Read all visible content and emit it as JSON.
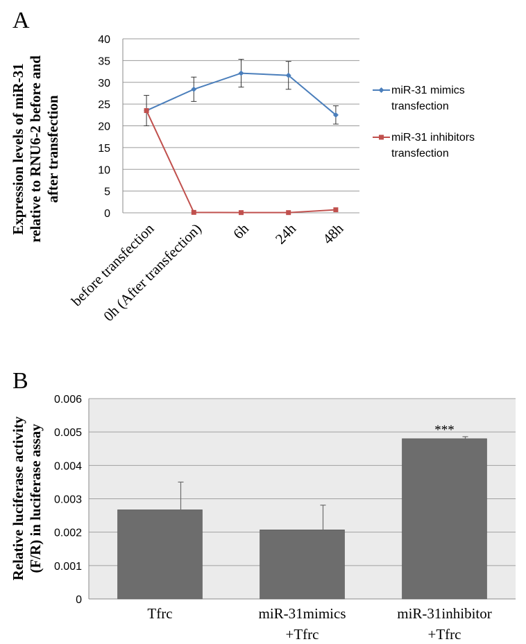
{
  "chart_data": [
    {
      "panel_label": "A",
      "type": "line",
      "categories": [
        "before transfection",
        "0h (After transfection)",
        "6h",
        "24h",
        "48h"
      ],
      "ylabel_lines": [
        "Expression levels of miR-31",
        "relative to RNU6-2 before and",
        "after transfection"
      ],
      "ylim": [
        0,
        40
      ],
      "yticks": [
        "0",
        "5",
        "10",
        "15",
        "20",
        "25",
        "30",
        "35",
        "40"
      ],
      "grid": true,
      "legend_position": "right",
      "series": [
        {
          "name_lines": [
            "miR-31 mimics",
            "transfection"
          ],
          "color": "#4a7ebb",
          "marker": "diamond",
          "values": [
            23.5,
            28.4,
            32.1,
            31.6,
            22.5
          ],
          "errors": [
            3.5,
            2.8,
            3.2,
            3.2,
            2.1
          ]
        },
        {
          "name_lines": [
            "miR-31 inhibitors",
            "transfection"
          ],
          "color": "#c0504d",
          "marker": "square",
          "values": [
            23.5,
            0.1,
            0.05,
            0.05,
            0.7
          ],
          "errors": [
            0,
            0,
            0,
            0,
            0
          ]
        }
      ]
    },
    {
      "panel_label": "B",
      "type": "bar",
      "categories_lines": [
        [
          "Tfrc"
        ],
        [
          "miR-31mimics",
          "+Tfrc"
        ],
        [
          "miR-31inhibitor",
          "+Tfrc"
        ]
      ],
      "values": [
        0.00267,
        0.00207,
        0.0048
      ],
      "errors": [
        0.00083,
        0.00074,
        6e-05
      ],
      "annotations": [
        "",
        "",
        "***"
      ],
      "ylabel_lines": [
        "Relative luciferase activity",
        "(F/R) in luciferase assay"
      ],
      "ylim": [
        0,
        0.006
      ],
      "yticks": [
        "0",
        "0.001",
        "0.002",
        "0.003",
        "0.004",
        "0.005",
        "0.006"
      ],
      "grid": true,
      "bar_color": "#6d6d6d",
      "plot_background": "#ebebeb"
    }
  ]
}
